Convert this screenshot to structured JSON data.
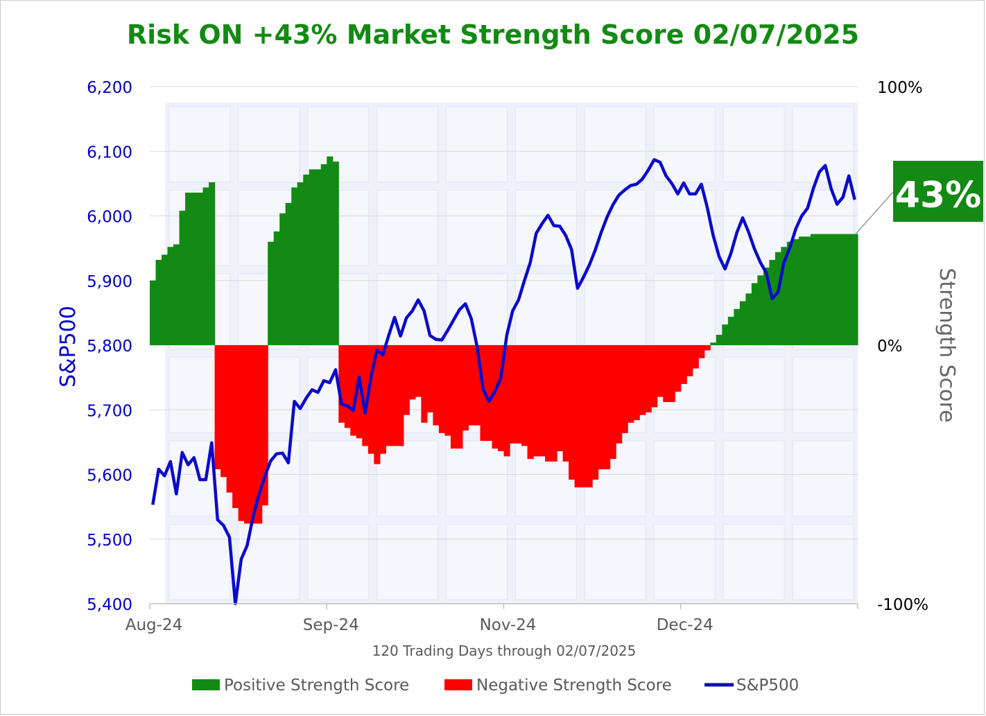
{
  "chart_data": {
    "type": "bar+line",
    "title": "Risk ON +43% Market Strength Score 02/07/2025",
    "title_color": "#138a13",
    "xlabel": "120 Trading Days through 02/07/2025",
    "ylabel_left": "S&P500",
    "ylabel_right": "Strength Score",
    "left_axis": {
      "range": [
        5400,
        6200
      ],
      "ticks": [
        5400,
        5500,
        5600,
        5700,
        5800,
        5900,
        6000,
        6100,
        6200
      ],
      "tick_labels": [
        "5,400",
        "5,500",
        "5,600",
        "5,700",
        "5,800",
        "5,900",
        "6,000",
        "6,100",
        "6,200"
      ],
      "color": "#0000cc"
    },
    "right_axis": {
      "range": [
        -100,
        100
      ],
      "ticks": [
        -100,
        0,
        100
      ],
      "tick_labels": [
        "-100%",
        "0%",
        "100%"
      ]
    },
    "x_tick_labels": [
      {
        "index": 0,
        "label": "Aug-24"
      },
      {
        "index": 30,
        "label": "Sep-24"
      },
      {
        "index": 60,
        "label": "Nov-24"
      },
      {
        "index": 90,
        "label": "Dec-24"
      }
    ],
    "callout": {
      "label": "43%",
      "value": 43,
      "color": "#138a13"
    },
    "series": [
      {
        "name": "Positive Strength Score",
        "color": "#138a13",
        "kind": "bar"
      },
      {
        "name": "Negative Strength Score",
        "color": "#ff0000",
        "kind": "bar"
      },
      {
        "name": "S&P500",
        "color": "#0a0acc",
        "kind": "line"
      }
    ],
    "strength": [
      25,
      33,
      35,
      38,
      39,
      52,
      59,
      59,
      59,
      61,
      63,
      -48,
      -51,
      -57,
      -63,
      -68,
      -69,
      -69,
      -69,
      -62,
      40,
      44,
      51,
      55,
      61,
      63,
      66,
      68,
      68,
      70,
      73,
      71,
      -30,
      -32,
      -35,
      -36,
      -39,
      -42,
      -46,
      -42,
      -39,
      -39,
      -39,
      -27,
      -21,
      -20,
      -30,
      -26,
      -31,
      -34,
      -35,
      -40,
      -40,
      -33,
      -31,
      -31,
      -37,
      -37,
      -40,
      -41,
      -43,
      -38,
      -38,
      -39,
      -44,
      -43,
      -43,
      -45,
      -45,
      -41,
      -45,
      -52,
      -55,
      -55,
      -55,
      -52,
      -48,
      -48,
      -44,
      -38,
      -34,
      -30,
      -29,
      -27,
      -26,
      -24,
      -20,
      -22,
      -22,
      -18,
      -15,
      -12,
      -9,
      -5,
      -2,
      1,
      4,
      8,
      11,
      14,
      17,
      20,
      24,
      27,
      30,
      33,
      36,
      38,
      40,
      41,
      42,
      42,
      43,
      43,
      43,
      43,
      43,
      43,
      43,
      43
    ],
    "sp500": [
      5553,
      5608,
      5598,
      5620,
      5570,
      5634,
      5615,
      5626,
      5592,
      5592,
      5649,
      5530,
      5521,
      5503,
      5400,
      5469,
      5490,
      5534,
      5569,
      5597,
      5621,
      5632,
      5633,
      5618,
      5713,
      5702,
      5718,
      5731,
      5727,
      5745,
      5742,
      5762,
      5709,
      5706,
      5699,
      5751,
      5695,
      5751,
      5792,
      5785,
      5815,
      5843,
      5814,
      5842,
      5853,
      5870,
      5853,
      5815,
      5809,
      5808,
      5823,
      5839,
      5855,
      5864,
      5841,
      5797,
      5732,
      5713,
      5728,
      5749,
      5815,
      5853,
      5870,
      5900,
      5928,
      5973,
      5988,
      6001,
      5985,
      5984,
      5970,
      5948,
      5888,
      5905,
      5924,
      5947,
      5974,
      5998,
      6017,
      6032,
      6040,
      6047,
      6049,
      6057,
      6071,
      6087,
      6083,
      6062,
      6050,
      6034,
      6051,
      6034,
      6034,
      6049,
      6013,
      5970,
      5937,
      5918,
      5942,
      5974,
      5997,
      5975,
      5949,
      5928,
      5912,
      5872,
      5882,
      5928,
      5951,
      5980,
      6000,
      6012,
      6043,
      6068,
      6078,
      6042,
      6018,
      6029,
      6062,
      6025
    ]
  }
}
